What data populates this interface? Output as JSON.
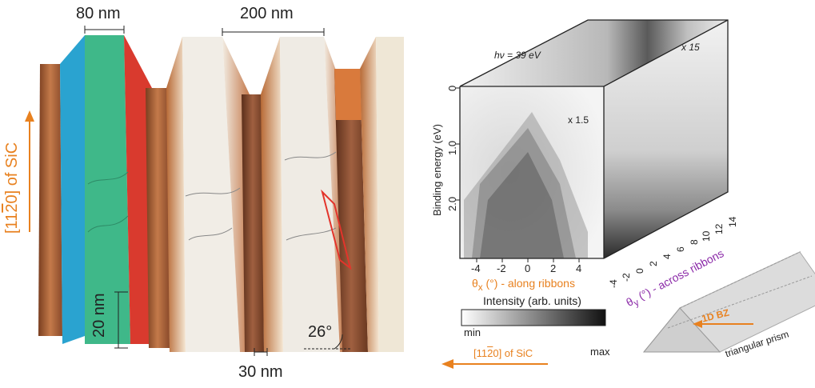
{
  "afm_panel": {
    "width_label_top_left": "80 nm",
    "width_label_top_right": "200 nm",
    "height_label": "20 nm",
    "bottom_width_label": "30 nm",
    "angle_label": "26°",
    "direction_label": "[11̅ 2̅ 0] of SiC",
    "direction_label_plain": "[11",
    "direction_label_bar": "2",
    "direction_label_end": "0] of SiC",
    "colors": {
      "blue_facet": "#2aa3d0",
      "green_facet": "#3fb889",
      "red_facet": "#d93a2e",
      "orange_arrow": "#e8811f"
    }
  },
  "arpes_panel": {
    "photon_energy": "hν = 39 eV",
    "top_scale": "x 15",
    "front_scale": "x 1.5",
    "y_axis_label": "Binding energy (eV)",
    "y_ticks": [
      "0",
      "1.0",
      "2.0"
    ],
    "x_axis_label": "θx (°) - along ribbons",
    "x_axis_prefix": "θ",
    "x_axis_sub": "x",
    "x_axis_suffix": " (°) - along ribbons",
    "x_ticks": [
      "-4",
      "-2",
      "0",
      "2",
      "4"
    ],
    "z_axis_prefix": "θ",
    "z_axis_sub": "y",
    "z_axis_suffix": " (°) - across ribbons",
    "z_ticks": [
      "-4",
      "-2",
      "0",
      "2",
      "4",
      "6",
      "8",
      "10",
      "12",
      "14"
    ],
    "colorbar_title": "Intensity (arb. units)",
    "colorbar_min": "min",
    "colorbar_max": "max",
    "bottom_direction_label_start": "[11",
    "bottom_direction_label_bar": "2",
    "bottom_direction_label_end": "0] of SiC"
  },
  "prism": {
    "bz_label": "1D BZ",
    "prism_label": "triangular prism"
  }
}
